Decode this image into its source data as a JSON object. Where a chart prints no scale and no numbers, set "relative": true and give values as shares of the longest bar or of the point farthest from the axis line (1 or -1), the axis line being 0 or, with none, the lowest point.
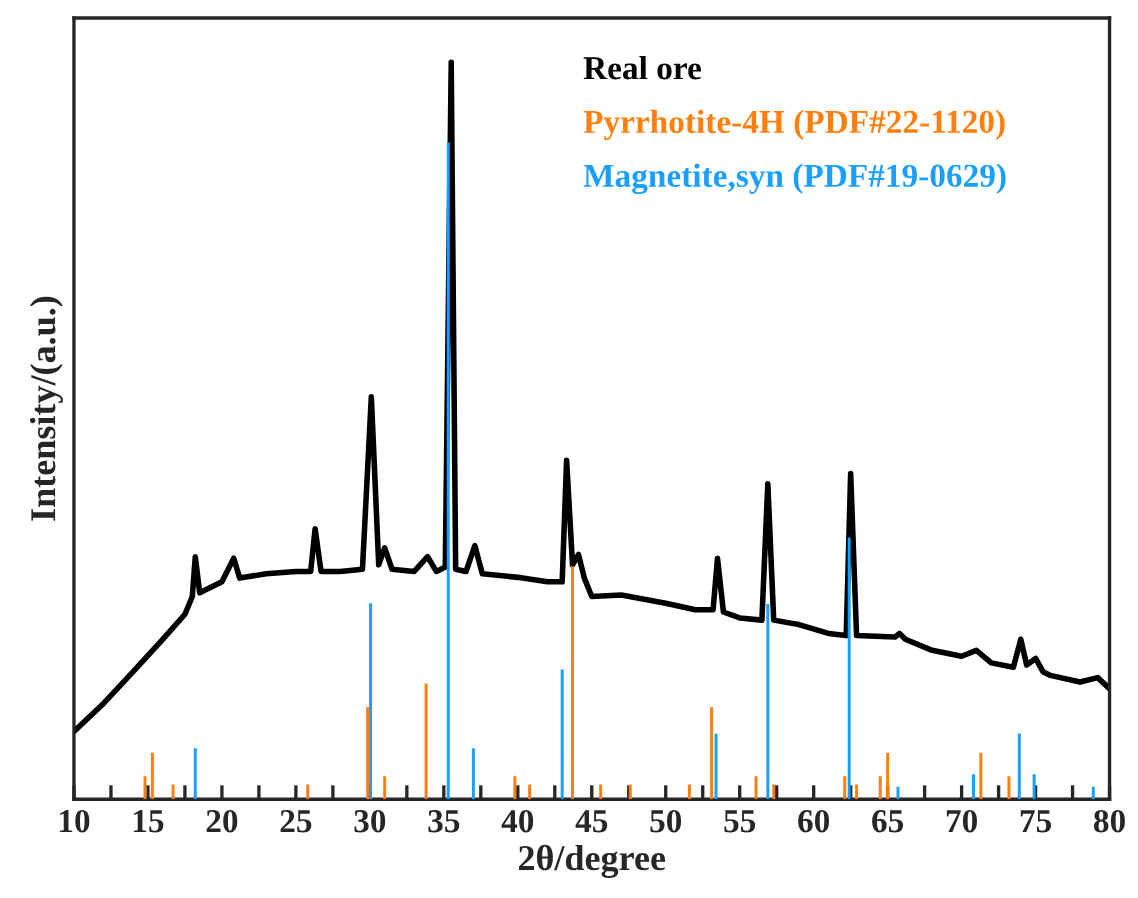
{
  "chart_data": {
    "type": "line",
    "relative": true,
    "xlabel": "2θ/degree",
    "ylabel": "Intensity/(a.u.)",
    "xlim": [
      10,
      80
    ],
    "xticks": [
      10,
      {
        "value": 12.5,
        "label": null
      },
      15,
      {
        "value": 17.5,
        "label": null
      },
      20,
      {
        "value": 22.5,
        "label": null
      },
      25,
      {
        "value": 27.5,
        "label": null
      },
      30,
      {
        "value": 32.5,
        "label": null
      },
      35,
      {
        "value": 37.5,
        "label": null
      },
      40,
      {
        "value": 42.5,
        "label": null
      },
      45,
      {
        "value": 47.5,
        "label": null
      },
      50,
      {
        "value": 52.5,
        "label": null
      },
      55,
      {
        "value": 57.5,
        "label": null
      },
      60,
      {
        "value": 62.5,
        "label": null
      },
      65,
      {
        "value": 67.5,
        "label": null
      },
      70,
      {
        "value": 72.5,
        "label": null
      },
      75,
      {
        "value": 77.5,
        "label": null
      },
      80
    ],
    "legend": "top right",
    "grid": false,
    "series": [
      {
        "name": "Real ore",
        "color": "#000000",
        "x": [
          10,
          12,
          14,
          16,
          17.5,
          18.0,
          18.2,
          18.5,
          20,
          20.8,
          21.2,
          23,
          25,
          26.0,
          26.3,
          26.7,
          28,
          29.5,
          30.1,
          30.6,
          31.0,
          31.5,
          33,
          33.9,
          34.5,
          35.1,
          35.5,
          35.8,
          36.5,
          37.1,
          37.6,
          40,
          42,
          43.0,
          43.3,
          43.7,
          44.1,
          44.5,
          45,
          47,
          50,
          52,
          53.2,
          53.5,
          53.9,
          55,
          56.5,
          56.9,
          57.3,
          59,
          61,
          62.2,
          62.5,
          62.9,
          65.5,
          65.8,
          66.2,
          68,
          70,
          71,
          72,
          73.5,
          74.0,
          74.4,
          75.0,
          75.5,
          76,
          78,
          79.2,
          80
        ],
        "values": [
          0.092,
          0.13,
          0.173,
          0.217,
          0.251,
          0.275,
          0.329,
          0.28,
          0.295,
          0.327,
          0.3,
          0.306,
          0.309,
          0.309,
          0.367,
          0.309,
          0.309,
          0.312,
          0.546,
          0.318,
          0.341,
          0.312,
          0.309,
          0.329,
          0.309,
          0.315,
          1.0,
          0.312,
          0.309,
          0.344,
          0.306,
          0.301,
          0.295,
          0.295,
          0.46,
          0.318,
          0.332,
          0.3,
          0.275,
          0.277,
          0.266,
          0.257,
          0.257,
          0.327,
          0.254,
          0.246,
          0.243,
          0.428,
          0.243,
          0.237,
          0.225,
          0.222,
          0.442,
          0.222,
          0.22,
          0.225,
          0.217,
          0.202,
          0.194,
          0.202,
          0.185,
          0.179,
          0.217,
          0.182,
          0.191,
          0.173,
          0.168,
          0.159,
          0.165,
          0.15
        ]
      },
      {
        "name": "Pyrrhotite-4H (PDF#22-1120)",
        "type": "bar",
        "color": "#ff7f0e",
        "x": [
          14.8,
          15.3,
          16.7,
          25.8,
          29.85,
          31.0,
          33.8,
          39.8,
          40.8,
          43.7,
          45.6,
          47.6,
          51.6,
          53.1,
          56.1,
          57.3,
          62.1,
          62.9,
          64.5,
          65.0,
          71.3,
          73.2
        ],
        "values": [
          0.031,
          0.063,
          0.02,
          0.02,
          0.125,
          0.031,
          0.157,
          0.031,
          0.02,
          0.316,
          0.02,
          0.02,
          0.02,
          0.125,
          0.031,
          0.02,
          0.031,
          0.02,
          0.031,
          0.063,
          0.063,
          0.031
        ]
      },
      {
        "name": "Magnetite,syn (PDF#19-0629)",
        "type": "bar",
        "color": "#1a9fff",
        "x": [
          18.2,
          30.05,
          35.3,
          37.0,
          43.0,
          53.4,
          56.9,
          62.4,
          65.7,
          70.8,
          73.9,
          74.9,
          78.9
        ],
        "values": [
          0.069,
          0.266,
          0.891,
          0.069,
          0.176,
          0.089,
          0.265,
          0.355,
          0.017,
          0.034,
          0.089,
          0.034,
          0.017
        ]
      }
    ]
  }
}
